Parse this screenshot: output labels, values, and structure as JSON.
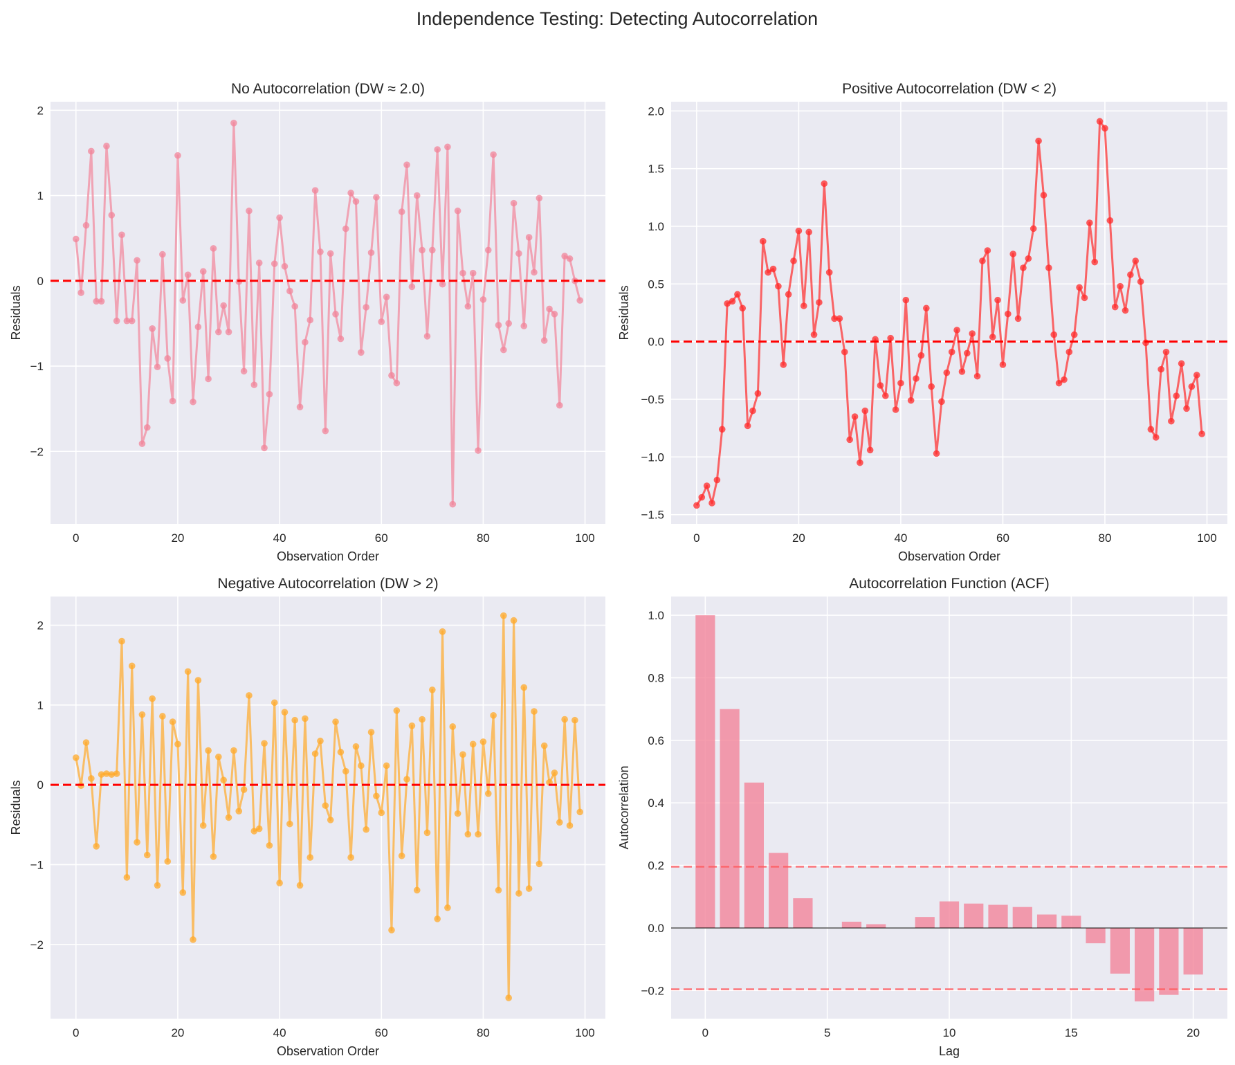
{
  "figure": {
    "suptitle": "Independence Testing: Detecting Autocorrelation"
  },
  "colors": {
    "background": "#EAEAF2",
    "grid": "#FFFFFF",
    "no_autocorr": "#F2849A",
    "positive": "#FF2A2A",
    "negative": "#FFAA2A",
    "acf_bar": "#F2849A",
    "zero_line": "#FF0000",
    "conf_band": "#FF5A5F"
  },
  "chart_data": [
    {
      "id": "no-autocorrelation",
      "type": "line",
      "title": "No Autocorrelation (DW ≈ 2.0)",
      "xlabel": "Observation Order",
      "ylabel": "Residuals",
      "xlim": [
        -5,
        104
      ],
      "ylim": [
        -2.85,
        2.1
      ],
      "xticks": [
        0,
        20,
        40,
        60,
        80,
        100
      ],
      "xtick_labels": [
        "0",
        "20",
        "40",
        "60",
        "80",
        "100"
      ],
      "yticks": [
        -2,
        -1,
        0,
        1,
        2
      ],
      "ytick_labels": [
        "−2",
        "−1",
        "0",
        "1",
        "2"
      ],
      "grid": true,
      "reference_line": 0,
      "x": "0..99",
      "values": [
        0.49,
        -0.14,
        0.65,
        1.52,
        -0.24,
        -0.24,
        1.58,
        0.77,
        -0.47,
        0.54,
        -0.47,
        -0.47,
        0.24,
        -1.91,
        -1.72,
        -0.56,
        -1.01,
        0.31,
        -0.91,
        -1.41,
        1.47,
        -0.23,
        0.07,
        -1.42,
        -0.54,
        0.11,
        -1.15,
        0.38,
        -0.6,
        -0.29,
        -0.6,
        1.85,
        -0.01,
        -1.06,
        0.82,
        -1.22,
        0.21,
        -1.96,
        -1.33,
        0.2,
        0.74,
        0.17,
        -0.12,
        -0.3,
        -1.48,
        -0.72,
        -0.46,
        1.06,
        0.34,
        -1.76,
        0.32,
        -0.39,
        -0.68,
        0.61,
        1.03,
        0.93,
        -0.84,
        -0.31,
        0.33,
        0.98,
        -0.48,
        -0.19,
        -1.11,
        -1.2,
        0.81,
        1.36,
        -0.07,
        1.0,
        0.36,
        -0.65,
        0.36,
        1.54,
        -0.04,
        1.57,
        -2.62,
        0.82,
        0.09,
        -0.3,
        0.09,
        -1.99,
        -0.22,
        0.36,
        1.48,
        -0.52,
        -0.81,
        -0.5,
        0.91,
        0.32,
        -0.53,
        0.51,
        0.1,
        0.97,
        -0.7,
        -0.33,
        -0.39,
        -1.46,
        0.29,
        0.26,
        0.0,
        -0.23
      ]
    },
    {
      "id": "positive-autocorrelation",
      "type": "line",
      "title": "Positive Autocorrelation (DW < 2)",
      "xlabel": "Observation Order",
      "ylabel": "Residuals",
      "xlim": [
        -5,
        104
      ],
      "ylim": [
        -1.58,
        2.08
      ],
      "xticks": [
        0,
        20,
        40,
        60,
        80,
        100
      ],
      "xtick_labels": [
        "0",
        "20",
        "40",
        "60",
        "80",
        "100"
      ],
      "yticks": [
        -1.5,
        -1.0,
        -0.5,
        0.0,
        0.5,
        1.0,
        1.5,
        2.0
      ],
      "ytick_labels": [
        "−1.5",
        "−1.0",
        "−0.5",
        "0.0",
        "0.5",
        "1.0",
        "1.5",
        "2.0"
      ],
      "grid": true,
      "reference_line": 0,
      "x": "0..99",
      "values": [
        -1.42,
        -1.35,
        -1.25,
        -1.4,
        -1.2,
        -0.76,
        0.33,
        0.35,
        0.41,
        0.29,
        -0.73,
        -0.6,
        -0.45,
        0.87,
        0.6,
        0.63,
        0.48,
        -0.2,
        0.41,
        0.7,
        0.96,
        0.31,
        0.95,
        0.06,
        0.34,
        1.37,
        0.6,
        0.2,
        0.2,
        -0.09,
        -0.85,
        -0.65,
        -1.05,
        -0.6,
        -0.94,
        0.02,
        -0.38,
        -0.47,
        0.03,
        -0.59,
        -0.36,
        0.36,
        -0.51,
        -0.32,
        -0.12,
        0.29,
        -0.39,
        -0.97,
        -0.52,
        -0.27,
        -0.09,
        0.1,
        -0.26,
        -0.1,
        0.07,
        -0.3,
        0.7,
        0.79,
        0.04,
        0.36,
        -0.2,
        0.24,
        0.76,
        0.2,
        0.64,
        0.72,
        0.98,
        1.74,
        1.27,
        0.64,
        0.06,
        -0.36,
        -0.33,
        -0.09,
        0.06,
        0.47,
        0.38,
        1.03,
        0.69,
        1.91,
        1.85,
        1.05,
        0.3,
        0.48,
        0.27,
        0.58,
        0.7,
        0.52,
        -0.01,
        -0.76,
        -0.83,
        -0.24,
        -0.09,
        -0.69,
        -0.47,
        -0.19,
        -0.58,
        -0.39,
        -0.29,
        -0.8
      ]
    },
    {
      "id": "negative-autocorrelation",
      "type": "line",
      "title": "Negative Autocorrelation (DW > 2)",
      "xlabel": "Observation Order",
      "ylabel": "Residuals",
      "xlim": [
        -5,
        104
      ],
      "ylim": [
        -2.93,
        2.36
      ],
      "xticks": [
        0,
        20,
        40,
        60,
        80,
        100
      ],
      "xtick_labels": [
        "0",
        "20",
        "40",
        "60",
        "80",
        "100"
      ],
      "yticks": [
        -2,
        -1,
        0,
        1,
        2
      ],
      "ytick_labels": [
        "−2",
        "−1",
        "0",
        "1",
        "2"
      ],
      "grid": true,
      "reference_line": 0,
      "x": "0..99",
      "values": [
        0.34,
        -0.01,
        0.53,
        0.08,
        -0.77,
        0.13,
        0.14,
        0.13,
        0.14,
        1.8,
        -1.16,
        1.49,
        -0.72,
        0.88,
        -0.88,
        1.08,
        -1.26,
        0.86,
        -0.96,
        0.79,
        0.51,
        -1.35,
        1.42,
        -1.94,
        1.31,
        -0.51,
        0.43,
        -0.9,
        0.35,
        0.06,
        -0.41,
        0.43,
        -0.33,
        -0.06,
        1.12,
        -0.58,
        -0.55,
        0.52,
        -0.76,
        1.03,
        -1.23,
        0.91,
        -0.49,
        0.81,
        -1.26,
        0.83,
        -0.91,
        0.39,
        0.55,
        -0.26,
        -0.44,
        0.79,
        0.41,
        0.17,
        -0.91,
        0.48,
        0.24,
        -0.56,
        0.66,
        -0.14,
        -0.35,
        0.24,
        -1.82,
        0.93,
        -0.89,
        0.07,
        0.74,
        -1.32,
        0.82,
        -0.6,
        1.19,
        -1.68,
        1.92,
        -1.54,
        0.73,
        -0.36,
        0.38,
        -0.62,
        0.51,
        -0.62,
        0.54,
        -0.11,
        0.87,
        -1.32,
        2.12,
        -2.67,
        2.06,
        -1.36,
        1.22,
        -1.3,
        0.92,
        -0.99,
        0.49,
        0.03,
        0.15,
        -0.47,
        0.82,
        -0.51,
        0.81,
        -0.34
      ]
    },
    {
      "id": "acf",
      "type": "bar",
      "title": "Autocorrelation Function (ACF)",
      "xlabel": "Lag",
      "ylabel": "Autocorrelation",
      "xlim": [
        -1.4,
        21.4
      ],
      "ylim": [
        -0.29,
        1.06
      ],
      "xticks": [
        0,
        5,
        10,
        15,
        20
      ],
      "xtick_labels": [
        "0",
        "5",
        "10",
        "15",
        "20"
      ],
      "yticks": [
        -0.2,
        0.0,
        0.2,
        0.4,
        0.6,
        0.8,
        1.0
      ],
      "ytick_labels": [
        "−0.2",
        "0.0",
        "0.2",
        "0.4",
        "0.6",
        "0.8",
        "1.0"
      ],
      "grid": true,
      "confidence_band": [
        -0.196,
        0.196
      ],
      "categories": [
        0,
        1,
        2,
        3,
        4,
        5,
        6,
        7,
        8,
        9,
        10,
        11,
        12,
        13,
        14,
        15,
        16,
        17,
        18,
        19,
        20
      ],
      "values": [
        1.0,
        0.7,
        0.465,
        0.24,
        0.095,
        0.0,
        0.02,
        0.012,
        0.0,
        0.035,
        0.085,
        0.078,
        0.074,
        0.067,
        0.043,
        0.039,
        -0.049,
        -0.146,
        -0.235,
        -0.214,
        -0.149
      ]
    }
  ]
}
